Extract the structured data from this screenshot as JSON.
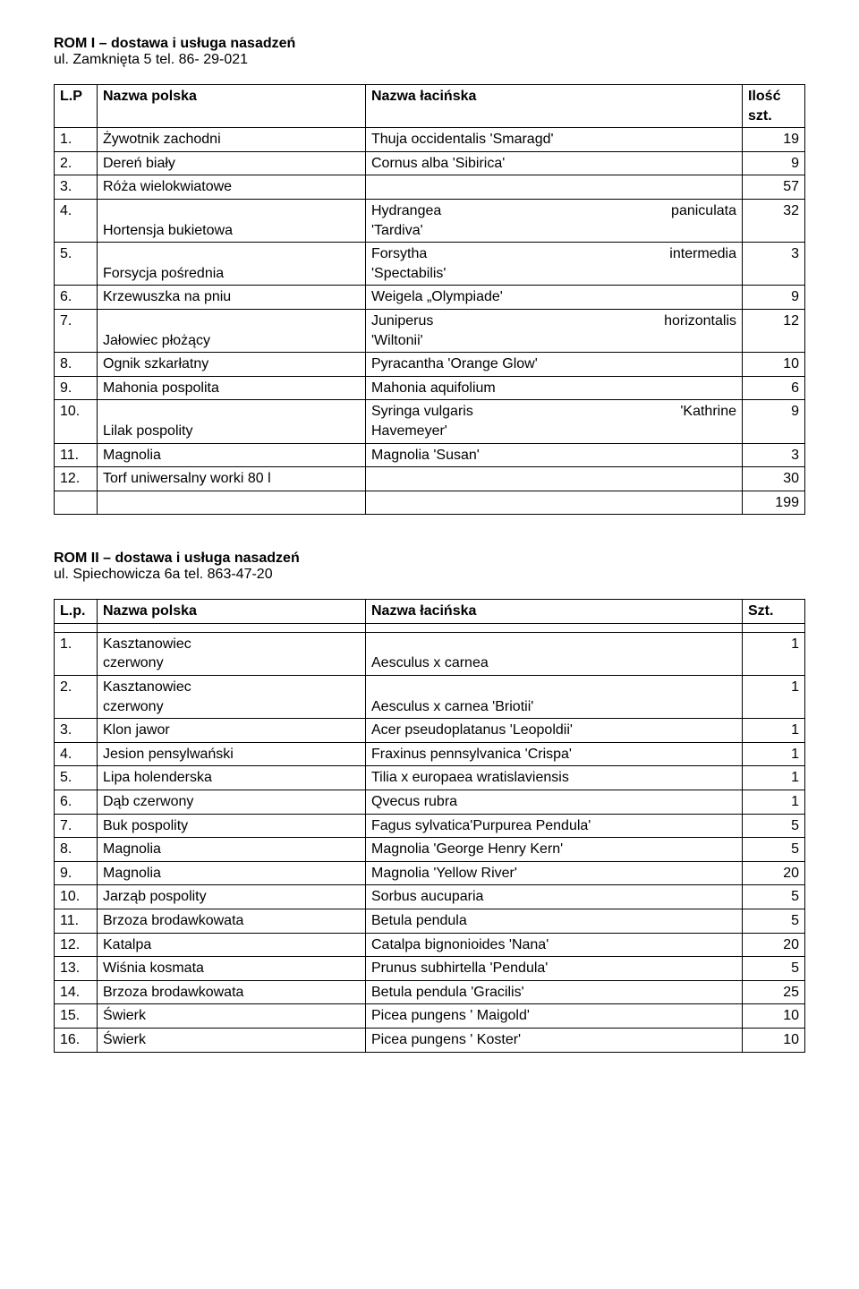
{
  "section1": {
    "title": "ROM I – dostawa i usługa nasadzeń",
    "subtitle": "ul. Zamknięta 5    tel. 86- 29-021",
    "headers": {
      "lp": "L.P",
      "pl": "Nazwa polska",
      "la": "Nazwa łacińska",
      "qty": "Ilość szt."
    },
    "rows": [
      {
        "lp": "1.",
        "pl": "Żywotnik zachodni",
        "la1a": "Thuja occidentalis 'Smaragd'",
        "la1b": "",
        "la2": "",
        "qty": "19"
      },
      {
        "lp": "2.",
        "pl": "Dereń biały",
        "la1a": "Cornus alba 'Sibirica'",
        "la1b": "",
        "la2": "",
        "qty": "9"
      },
      {
        "lp": "3.",
        "pl": "Róża wielokwiatowe",
        "la1a": "",
        "la1b": "",
        "la2": "",
        "qty": "57"
      },
      {
        "lp": "4.",
        "pl": "Hortensja bukietowa",
        "la1a": "Hydrangea",
        "la1b": "paniculata",
        "la2": "'Tardiva'",
        "qty": "32"
      },
      {
        "lp": "5.",
        "pl": "Forsycja pośrednia",
        "la1a": "Forsytha",
        "la1b": "intermedia",
        "la2": "'Spectabilis'",
        "qty": "3"
      },
      {
        "lp": "6.",
        "pl": "Krzewuszka na pniu",
        "la1a": "Weigela „Olympiade'",
        "la1b": "",
        "la2": "",
        "qty": "9"
      },
      {
        "lp": "7.",
        "pl": "Jałowiec płożący",
        "la1a": "Juniperus",
        "la1b": "horizontalis",
        "la2": "'Wiltonii'",
        "qty": "12"
      },
      {
        "lp": "8.",
        "pl": "Ognik szkarłatny",
        "la1a": "Pyracantha 'Orange Glow'",
        "la1b": "",
        "la2": "",
        "qty": "10"
      },
      {
        "lp": "9.",
        "pl": "Mahonia pospolita",
        "la1a": "Mahonia aquifolium",
        "la1b": "",
        "la2": "",
        "qty": "6"
      },
      {
        "lp": "10.",
        "pl": "Lilak pospolity",
        "la1a": "Syringa   vulgaris",
        "la1b": "'Kathrine",
        "la2": "Havemeyer'",
        "qty": "9"
      },
      {
        "lp": "11.",
        "pl": "Magnolia",
        "la1a": "Magnolia 'Susan'",
        "la1b": "",
        "la2": "",
        "qty": "3"
      },
      {
        "lp": "12.",
        "pl": "Torf uniwersalny worki 80 l",
        "la1a": "",
        "la1b": "",
        "la2": "",
        "qty": "30"
      }
    ],
    "total": "199"
  },
  "section2": {
    "title": "ROM II – dostawa i usługa nasadzeń",
    "subtitle": "ul. Spiechowicza 6a   tel. 863-47-20",
    "headers": {
      "lp": "L.p.",
      "pl": "Nazwa polska",
      "la": "Nazwa łacińska",
      "qty": "Szt."
    },
    "rows": [
      {
        "lp": "1.",
        "pl1": "Kasztanowiec",
        "pl2": "czerwony",
        "la": "Aesculus x carnea",
        "qty": "1"
      },
      {
        "lp": "2.",
        "pl1": "Kasztanowiec",
        "pl2": "czerwony",
        "la": " Aesculus x carnea 'Briotii'",
        "qty": "1"
      },
      {
        "lp": "3.",
        "pl1": "Klon jawor",
        "pl2": "",
        "la": "Acer pseudoplatanus 'Leopoldii'",
        "qty": "1"
      },
      {
        "lp": "4.",
        "pl1": "Jesion pensylwański",
        "pl2": "",
        "la": "Fraxinus pennsylvanica 'Crispa'",
        "qty": "1"
      },
      {
        "lp": "5.",
        "pl1": "Lipa holenderska",
        "pl2": "",
        "la": "Tilia x europaea wratislaviensis",
        "qty": "1"
      },
      {
        "lp": "6.",
        "pl1": "Dąb czerwony",
        "pl2": "",
        "la": "Qvecus rubra",
        "qty": "1"
      },
      {
        "lp": "7.",
        "pl1": "Buk pospolity",
        "pl2": "",
        "la": "Fagus sylvatica'Purpurea Pendula'",
        "qty": "5"
      },
      {
        "lp": "8.",
        "pl1": "Magnolia",
        "pl2": "",
        "la": " Magnolia 'George Henry Kern'",
        "qty": "5"
      },
      {
        "lp": "9.",
        "pl1": "Magnolia",
        "pl2": "",
        "la": "Magnolia 'Yellow River'",
        "qty": "20"
      },
      {
        "lp": "10.",
        "pl1": "Jarząb pospolity",
        "pl2": "",
        "la": "Sorbus aucuparia",
        "qty": "5"
      },
      {
        "lp": "11.",
        "pl1": "Brzoza brodawkowata",
        "pl2": "",
        "la": "Betula pendula",
        "qty": "5"
      },
      {
        "lp": "12.",
        "pl1": "Katalpa",
        "pl2": "",
        "la": "Catalpa bignonioides 'Nana'",
        "qty": "20"
      },
      {
        "lp": "13.",
        "pl1": "Wiśnia kosmata",
        "pl2": "",
        "la": "Prunus subhirtella 'Pendula'",
        "qty": "5"
      },
      {
        "lp": "14.",
        "pl1": "Brzoza brodawkowata",
        "pl2": "",
        "la": "Betula pendula 'Gracilis'",
        "qty": "25"
      },
      {
        "lp": "15.",
        "pl1": "Świerk",
        "pl2": "",
        "la": "Picea pungens ' Maigold'",
        "qty": "10"
      },
      {
        "lp": "16.",
        "pl1": "Świerk",
        "pl2": "",
        "la": "Picea pungens ' Koster'",
        "qty": "10"
      }
    ]
  }
}
